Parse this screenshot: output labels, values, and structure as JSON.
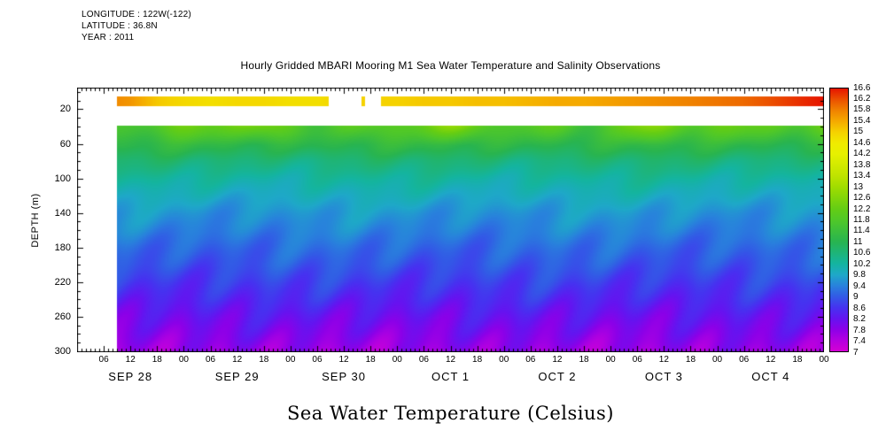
{
  "meta": {
    "longitude": "LONGITUDE : 122W(-122)",
    "latitude": "LATITUDE : 36.8N",
    "year": "YEAR : 2011"
  },
  "chart_data": {
    "type": "heatmap",
    "title": "Hourly Gridded MBARI Mooring M1 Sea Water Temperature and Salinity Observations",
    "caption": "Sea Water Temperature (Celsius)",
    "ylabel": "DEPTH (m)",
    "units": "Celsius",
    "y_ticks_m": [
      20,
      60,
      100,
      140,
      180,
      220,
      260,
      300
    ],
    "depth_display_range_m": [
      -5,
      301
    ],
    "time_range_hours": [
      0,
      168
    ],
    "hour_tick_step": 6,
    "hour_tick_labels": [
      "06",
      "12",
      "18",
      "00",
      "06",
      "12",
      "18",
      "00",
      "06",
      "12",
      "18",
      "00",
      "06",
      "12",
      "18",
      "00",
      "06",
      "12",
      "18",
      "00",
      "06",
      "12",
      "18",
      "00",
      "06",
      "12",
      "18",
      "00"
    ],
    "date_labels": [
      "SEP 28",
      "SEP 29",
      "SEP 30",
      "OCT 1",
      "OCT 2",
      "OCT 3",
      "OCT 4"
    ],
    "date_label_noon_hours": [
      12,
      36,
      60,
      84,
      108,
      132,
      156
    ],
    "data_start_hour": 9,
    "surface_band": {
      "depth_top_m": 5,
      "depth_bottom_m": 16,
      "hours": [
        9,
        12,
        18,
        24,
        30,
        36,
        42,
        48,
        54,
        60,
        66,
        72,
        78,
        84,
        90,
        96,
        102,
        108,
        114,
        120,
        126,
        132,
        138,
        144,
        150,
        156,
        162,
        168
      ],
      "temps_c": [
        15.7,
        15.6,
        15.1,
        14.9,
        14.8,
        14.9,
        14.9,
        14.8,
        14.8,
        15.0,
        15.0,
        15.0,
        15.1,
        15.1,
        15.2,
        15.2,
        15.3,
        15.4,
        15.4,
        15.5,
        15.6,
        15.7,
        15.8,
        15.9,
        16.0,
        16.2,
        16.4,
        16.6
      ],
      "missing_hour_ranges": [
        [
          56.5,
          64.0
        ],
        [
          64.8,
          68.3
        ]
      ]
    },
    "body": {
      "depth_top_m": 38,
      "profile_depths_m": [
        38,
        50,
        60,
        80,
        100,
        120,
        140,
        160,
        180,
        200,
        220,
        240,
        260,
        280,
        300
      ],
      "profile_temps_c": [
        12.0,
        11.6,
        11.2,
        10.6,
        10.2,
        9.9,
        9.6,
        9.4,
        9.15,
        8.95,
        8.7,
        8.45,
        8.15,
        7.9,
        7.65
      ]
    },
    "colorbar": {
      "levels": [
        7,
        7.4,
        7.8,
        8.2,
        8.6,
        9,
        9.4,
        9.8,
        10.2,
        10.6,
        11,
        11.4,
        11.8,
        12.2,
        12.6,
        13,
        13.4,
        13.8,
        14.2,
        14.6,
        15,
        15.4,
        15.8,
        16.2,
        16.6
      ],
      "stops": [
        [
          7,
          "#d400d4"
        ],
        [
          7.4,
          "#b400e0"
        ],
        [
          7.8,
          "#8c00e8"
        ],
        [
          8.2,
          "#6414f0"
        ],
        [
          8.6,
          "#4632f0"
        ],
        [
          9,
          "#325ae6"
        ],
        [
          9.4,
          "#2882dc"
        ],
        [
          9.8,
          "#1ea8c8"
        ],
        [
          10.2,
          "#14b4a0"
        ],
        [
          10.6,
          "#1eb478"
        ],
        [
          11,
          "#28b450"
        ],
        [
          11.4,
          "#3cbe3c"
        ],
        [
          11.8,
          "#50c828"
        ],
        [
          12.2,
          "#64cd14"
        ],
        [
          12.6,
          "#82d50a"
        ],
        [
          13,
          "#a0dc00"
        ],
        [
          13.4,
          "#bee300"
        ],
        [
          13.8,
          "#d2ea00"
        ],
        [
          14.2,
          "#e6f000"
        ],
        [
          14.6,
          "#f0eb00"
        ],
        [
          15,
          "#f5d200"
        ],
        [
          15.4,
          "#f5aa00"
        ],
        [
          15.8,
          "#f08200"
        ],
        [
          16.2,
          "#eb5000"
        ],
        [
          16.6,
          "#e61400"
        ]
      ]
    }
  }
}
